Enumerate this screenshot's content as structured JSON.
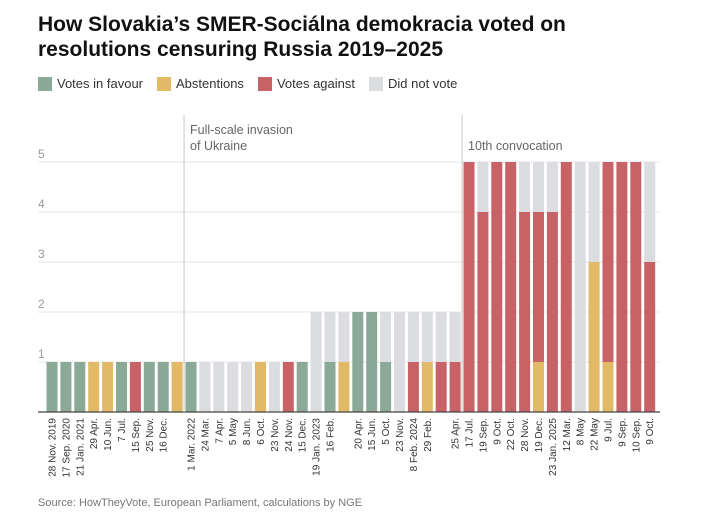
{
  "chart_data": {
    "type": "bar",
    "stacked": true,
    "title": "How Slovakia’s SMER-Sociálna demokracia voted on resolutions censuring Russia 2019–2025",
    "ylim": [
      0,
      5
    ],
    "yticks": [
      "1",
      "2",
      "3",
      "4",
      "5"
    ],
    "grid": true,
    "legend_position": "top-left",
    "colors": {
      "favour": "#8ba997",
      "abstain": "#e1b967",
      "against": "#c76366",
      "none": "#dcdde1"
    },
    "series": [
      {
        "key": "favour",
        "name": "Votes in favour"
      },
      {
        "key": "abstain",
        "name": "Abstentions"
      },
      {
        "key": "against",
        "name": "Votes against"
      },
      {
        "key": "none",
        "name": "Did not vote"
      }
    ],
    "bars": [
      {
        "label": "28 Nov. 2019",
        "favour": 1,
        "abstain": 0,
        "against": 0,
        "none": 0
      },
      {
        "label": "17 Sep. 2020",
        "favour": 1,
        "abstain": 0,
        "against": 0,
        "none": 0
      },
      {
        "label": "21 Jan. 2021",
        "favour": 1,
        "abstain": 0,
        "against": 0,
        "none": 0
      },
      {
        "label": "29 Apr.",
        "favour": 0,
        "abstain": 1,
        "against": 0,
        "none": 0
      },
      {
        "label": "10 Jun.",
        "favour": 0,
        "abstain": 1,
        "against": 0,
        "none": 0
      },
      {
        "label": "7 Jul.",
        "favour": 1,
        "abstain": 0,
        "against": 0,
        "none": 0
      },
      {
        "label": "15 Sep.",
        "favour": 0,
        "abstain": 0,
        "against": 1,
        "none": 0
      },
      {
        "label": "25 Nov.",
        "favour": 1,
        "abstain": 0,
        "against": 0,
        "none": 0
      },
      {
        "label": "16 Dec.",
        "favour": 1,
        "abstain": 0,
        "against": 0,
        "none": 0
      },
      {
        "label": "",
        "favour": 0,
        "abstain": 1,
        "against": 0,
        "none": 0
      },
      {
        "label": "1 Mar. 2022",
        "favour": 1,
        "abstain": 0,
        "against": 0,
        "none": 0
      },
      {
        "label": "24 Mar.",
        "favour": 0,
        "abstain": 0,
        "against": 0,
        "none": 1
      },
      {
        "label": "7 Apr.",
        "favour": 0,
        "abstain": 0,
        "against": 0,
        "none": 1
      },
      {
        "label": "5 May",
        "favour": 0,
        "abstain": 0,
        "against": 0,
        "none": 1
      },
      {
        "label": "8 Jun.",
        "favour": 0,
        "abstain": 0,
        "against": 0,
        "none": 1
      },
      {
        "label": "6 Oct.",
        "favour": 0,
        "abstain": 1,
        "against": 0,
        "none": 0
      },
      {
        "label": "23 Nov.",
        "favour": 0,
        "abstain": 0,
        "against": 0,
        "none": 1
      },
      {
        "label": "24 Nov.",
        "favour": 0,
        "abstain": 0,
        "against": 1,
        "none": 0
      },
      {
        "label": "15 Dec.",
        "favour": 1,
        "abstain": 0,
        "against": 0,
        "none": 0
      },
      {
        "label": "19 Jan. 2023",
        "favour": 0,
        "abstain": 0,
        "against": 0,
        "none": 2
      },
      {
        "label": "16 Feb.",
        "favour": 1,
        "abstain": 0,
        "against": 0,
        "none": 1
      },
      {
        "label": "",
        "favour": 0,
        "abstain": 1,
        "against": 0,
        "none": 1
      },
      {
        "label": "20 Apr.",
        "favour": 2,
        "abstain": 0,
        "against": 0,
        "none": 0
      },
      {
        "label": "15 Jun.",
        "favour": 2,
        "abstain": 0,
        "against": 0,
        "none": 0
      },
      {
        "label": "5 Oct.",
        "favour": 1,
        "abstain": 0,
        "against": 0,
        "none": 1
      },
      {
        "label": "23 Nov.",
        "favour": 0,
        "abstain": 0,
        "against": 0,
        "none": 2
      },
      {
        "label": "8 Feb. 2024",
        "favour": 0,
        "abstain": 0,
        "against": 1,
        "none": 1
      },
      {
        "label": "29 Feb.",
        "favour": 0,
        "abstain": 1,
        "against": 0,
        "none": 1
      },
      {
        "label": "",
        "favour": 0,
        "abstain": 0,
        "against": 1,
        "none": 1
      },
      {
        "label": "25 Apr.",
        "favour": 0,
        "abstain": 0,
        "against": 1,
        "none": 1
      },
      {
        "label": "17 Jul.",
        "favour": 0,
        "abstain": 0,
        "against": 5,
        "none": 0
      },
      {
        "label": "19 Sep.",
        "favour": 0,
        "abstain": 0,
        "against": 4,
        "none": 1
      },
      {
        "label": "9 Oct.",
        "favour": 0,
        "abstain": 0,
        "against": 5,
        "none": 0
      },
      {
        "label": "22 Oct.",
        "favour": 0,
        "abstain": 0,
        "against": 5,
        "none": 0
      },
      {
        "label": "28 Nov.",
        "favour": 0,
        "abstain": 0,
        "against": 4,
        "none": 1
      },
      {
        "label": "19 Dec.",
        "favour": 0,
        "abstain": 1,
        "against": 3,
        "none": 1
      },
      {
        "label": "23 Jan. 2025",
        "favour": 0,
        "abstain": 0,
        "against": 4,
        "none": 1
      },
      {
        "label": "12 Mar.",
        "favour": 0,
        "abstain": 0,
        "against": 5,
        "none": 0
      },
      {
        "label": "8 May",
        "favour": 0,
        "abstain": 0,
        "against": 0,
        "none": 5
      },
      {
        "label": "22 May",
        "favour": 0,
        "abstain": 3,
        "against": 0,
        "none": 2
      },
      {
        "label": "9 Jul.",
        "favour": 0,
        "abstain": 1,
        "against": 4,
        "none": 0
      },
      {
        "label": "9 Sep.",
        "favour": 0,
        "abstain": 0,
        "against": 5,
        "none": 0
      },
      {
        "label": "10 Sep.",
        "favour": 0,
        "abstain": 0,
        "against": 5,
        "none": 0
      },
      {
        "label": "9 Oct.",
        "favour": 0,
        "abstain": 0,
        "against": 3,
        "none": 2
      }
    ],
    "annotations": [
      {
        "before_bar": 10,
        "line1": "Full-scale invasion",
        "line2": "of Ukraine"
      },
      {
        "before_bar": 30,
        "line1": "10th convocation",
        "line2": ""
      }
    ]
  },
  "source": "Source: HowTheyVote, European Parliament, calculations by NGE"
}
